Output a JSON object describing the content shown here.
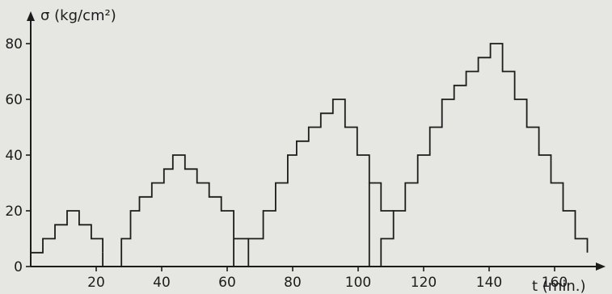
{
  "chart_data": {
    "type": "line",
    "step": true,
    "ylabel": "σ (kg/cm²)",
    "xlabel": "t (min.)",
    "xlim": [
      0,
      180
    ],
    "ylim": [
      0,
      80
    ],
    "xticks": [
      20,
      40,
      60,
      80,
      100,
      120,
      140,
      160
    ],
    "yticks": [
      0,
      20,
      40,
      60,
      80
    ],
    "grid": false,
    "legend": "none",
    "series": [
      {
        "x": [
          0,
          0,
          3.7,
          3.7,
          7.4,
          7.4,
          11.1,
          11.1,
          14.8,
          14.8,
          18.5,
          18.5,
          22,
          22
        ],
        "y": [
          0,
          5,
          5,
          10,
          10,
          15,
          15,
          20,
          20,
          15,
          15,
          10,
          10,
          5
        ]
      },
      {
        "x": [
          22,
          22,
          27.7,
          27.7,
          30.5,
          30.5,
          33.2,
          33.2,
          37,
          37,
          40.7,
          40.7,
          43.4,
          43.4,
          47.1,
          47.1,
          50.8,
          50.8,
          54.5,
          54.5,
          58.2,
          58.2,
          62,
          62,
          66.5
        ],
        "y": [
          5,
          0,
          0,
          10,
          10,
          20,
          20,
          25,
          25,
          30,
          30,
          35,
          35,
          40,
          40,
          35,
          35,
          30,
          30,
          25,
          25,
          20,
          20,
          10,
          10
        ]
      },
      {
        "x": [
          62,
          62,
          66.5,
          66.5,
          71,
          71,
          74.8,
          74.8,
          78.5,
          78.5,
          81.2,
          81.2,
          84.9,
          84.9,
          88.6,
          88.6,
          92.3,
          92.3,
          96,
          96,
          99.7,
          99.7,
          103.4,
          103.4,
          107,
          107,
          111
        ],
        "y": [
          10,
          0,
          0,
          10,
          10,
          20,
          20,
          30,
          30,
          40,
          40,
          45,
          45,
          50,
          50,
          55,
          55,
          60,
          60,
          50,
          50,
          40,
          40,
          30,
          30,
          20,
          20
        ]
      },
      {
        "x": [
          103.4,
          103.4,
          107,
          107,
          110.8,
          110.8,
          114.4,
          114.4,
          118.2,
          118.2,
          121.9,
          121.9,
          125.6,
          125.6,
          129.3,
          129.3,
          133,
          133,
          136.7,
          136.7,
          140.4,
          140.4,
          144.1,
          144.1,
          147.8,
          147.8,
          151.5,
          151.5,
          155.2,
          155.2,
          158.9,
          158.9,
          162.6,
          162.6,
          166.3,
          166.3,
          170,
          170
        ],
        "y": [
          30,
          0,
          0,
          10,
          10,
          20,
          20,
          30,
          30,
          40,
          40,
          50,
          50,
          60,
          60,
          65,
          65,
          70,
          70,
          75,
          75,
          80,
          80,
          70,
          70,
          60,
          60,
          50,
          50,
          40,
          40,
          30,
          30,
          20,
          20,
          10,
          10,
          5
        ]
      }
    ]
  }
}
